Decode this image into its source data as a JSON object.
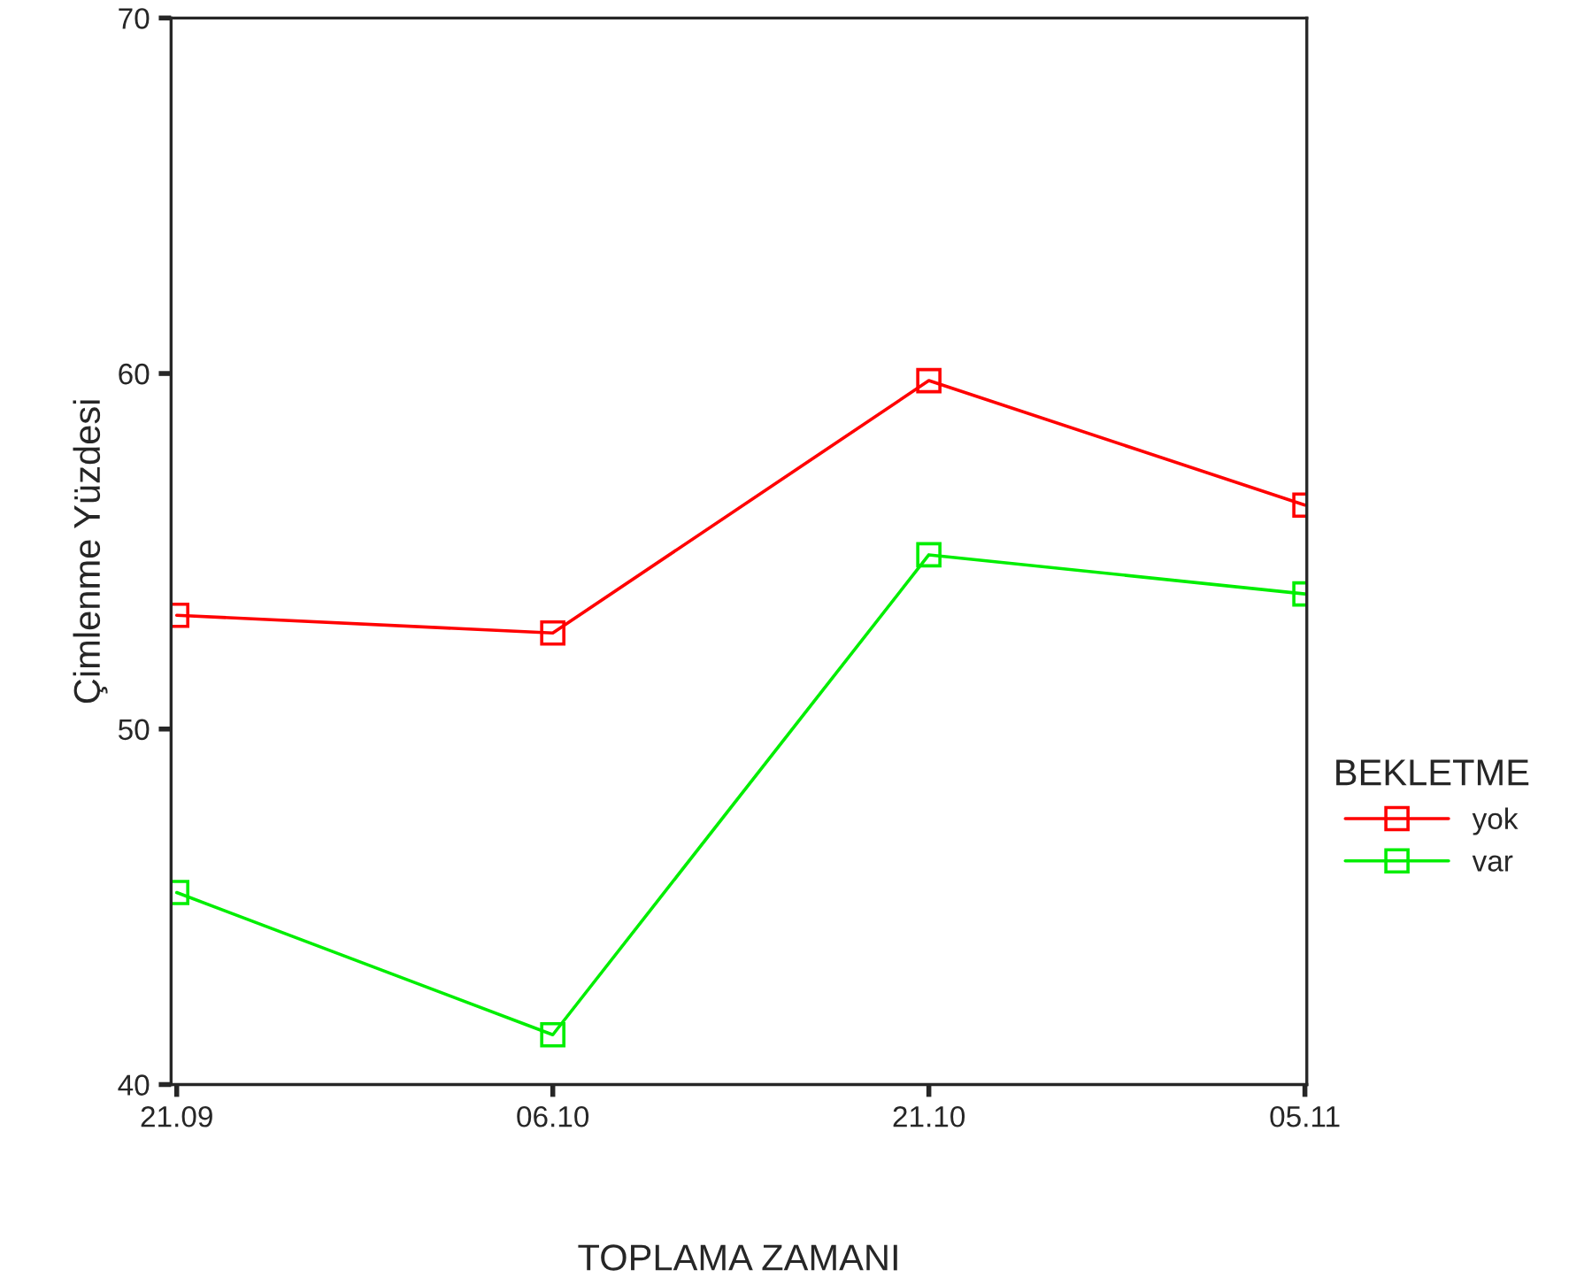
{
  "chart_data": {
    "type": "line",
    "xlabel": "TOPLAMA ZAMANI",
    "ylabel": "Çimlenme Yüzdesi",
    "legend_title": "BEKLETME",
    "categories": [
      "21.09",
      "06.10",
      "21.10",
      "05.11"
    ],
    "series": [
      {
        "name": "yok",
        "color": "#ff0000",
        "values": [
          53.2,
          52.7,
          59.8,
          56.3
        ]
      },
      {
        "name": "var",
        "color": "#00ee00",
        "values": [
          45.4,
          41.4,
          54.9,
          53.8
        ]
      }
    ],
    "ylim": [
      40,
      70
    ],
    "yticks": [
      40,
      50,
      60,
      70
    ],
    "grid": false,
    "legend": "right",
    "marker": "square",
    "line_style": "solid"
  }
}
